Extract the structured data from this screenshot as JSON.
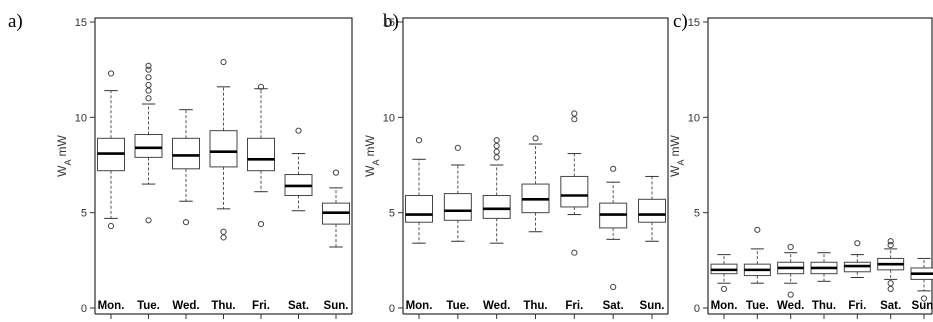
{
  "chart_data": [
    {
      "type": "boxplot",
      "panel_label": "a)",
      "ylabel": "W",
      "ylabel_sub": "A",
      "ylabel_unit": "mW",
      "ylim": [
        0,
        15
      ],
      "yticks": [
        0,
        5,
        10,
        15
      ],
      "categories": [
        "Mon.",
        "Tue.",
        "Wed.",
        "Thu.",
        "Fri.",
        "Sat.",
        "Sun."
      ],
      "boxes": [
        {
          "whisker_low": 4.7,
          "q1": 7.2,
          "median": 8.1,
          "q3": 8.9,
          "whisker_high": 11.4,
          "outliers": [
            4.3,
            12.3
          ]
        },
        {
          "whisker_low": 6.5,
          "q1": 7.9,
          "median": 8.4,
          "q3": 9.1,
          "whisker_high": 10.7,
          "outliers": [
            4.6,
            11.0,
            11.4,
            11.7,
            12.1,
            12.5,
            12.7
          ]
        },
        {
          "whisker_low": 5.6,
          "q1": 7.3,
          "median": 8.0,
          "q3": 8.9,
          "whisker_high": 10.4,
          "outliers": [
            4.5
          ]
        },
        {
          "whisker_low": 5.2,
          "q1": 7.4,
          "median": 8.2,
          "q3": 9.3,
          "whisker_high": 11.6,
          "outliers": [
            3.7,
            4.0,
            12.9
          ]
        },
        {
          "whisker_low": 6.1,
          "q1": 7.2,
          "median": 7.8,
          "q3": 8.9,
          "whisker_high": 11.5,
          "outliers": [
            4.4,
            11.6
          ]
        },
        {
          "whisker_low": 5.1,
          "q1": 5.9,
          "median": 6.4,
          "q3": 7.0,
          "whisker_high": 8.1,
          "outliers": [
            9.3
          ]
        },
        {
          "whisker_low": 3.2,
          "q1": 4.4,
          "median": 5.0,
          "q3": 5.5,
          "whisker_high": 6.3,
          "outliers": [
            7.1
          ]
        }
      ]
    },
    {
      "type": "boxplot",
      "panel_label": "b)",
      "ylabel": "W",
      "ylabel_sub": "A",
      "ylabel_unit": "mW",
      "ylim": [
        0,
        15
      ],
      "yticks": [
        0,
        5,
        10,
        15
      ],
      "categories": [
        "Mon.",
        "Tue.",
        "Wed.",
        "Thu.",
        "Fri.",
        "Sat.",
        "Sun."
      ],
      "boxes": [
        {
          "whisker_low": 3.4,
          "q1": 4.5,
          "median": 4.9,
          "q3": 5.9,
          "whisker_high": 7.8,
          "outliers": [
            8.8
          ]
        },
        {
          "whisker_low": 3.5,
          "q1": 4.6,
          "median": 5.1,
          "q3": 6.0,
          "whisker_high": 7.5,
          "outliers": [
            8.4
          ]
        },
        {
          "whisker_low": 3.4,
          "q1": 4.7,
          "median": 5.2,
          "q3": 5.9,
          "whisker_high": 7.5,
          "outliers": [
            7.9,
            8.2,
            8.5,
            8.8
          ]
        },
        {
          "whisker_low": 4.0,
          "q1": 5.0,
          "median": 5.7,
          "q3": 6.5,
          "whisker_high": 8.6,
          "outliers": [
            8.9
          ]
        },
        {
          "whisker_low": 4.9,
          "q1": 5.3,
          "median": 5.9,
          "q3": 6.9,
          "whisker_high": 8.1,
          "outliers": [
            2.9,
            9.9,
            10.2
          ]
        },
        {
          "whisker_low": 3.6,
          "q1": 4.2,
          "median": 4.9,
          "q3": 5.5,
          "whisker_high": 6.6,
          "outliers": [
            1.1,
            7.3
          ]
        },
        {
          "whisker_low": 3.5,
          "q1": 4.5,
          "median": 4.9,
          "q3": 5.7,
          "whisker_high": 6.9,
          "outliers": []
        }
      ]
    },
    {
      "type": "boxplot",
      "panel_label": "c)",
      "ylabel": "W",
      "ylabel_sub": "A",
      "ylabel_unit": "mW",
      "ylim": [
        0,
        15
      ],
      "yticks": [
        0,
        5,
        10,
        15
      ],
      "categories": [
        "Mon.",
        "Tue.",
        "Wed.",
        "Thu.",
        "Fri.",
        "Sat.",
        "Sun."
      ],
      "boxes": [
        {
          "whisker_low": 1.3,
          "q1": 1.8,
          "median": 2.0,
          "q3": 2.3,
          "whisker_high": 2.8,
          "outliers": [
            1.0
          ]
        },
        {
          "whisker_low": 1.3,
          "q1": 1.7,
          "median": 2.0,
          "q3": 2.3,
          "whisker_high": 3.1,
          "outliers": [
            4.1
          ]
        },
        {
          "whisker_low": 1.3,
          "q1": 1.8,
          "median": 2.1,
          "q3": 2.4,
          "whisker_high": 2.9,
          "outliers": [
            0.7,
            3.2
          ]
        },
        {
          "whisker_low": 1.4,
          "q1": 1.8,
          "median": 2.1,
          "q3": 2.4,
          "whisker_high": 2.9,
          "outliers": []
        },
        {
          "whisker_low": 1.6,
          "q1": 1.9,
          "median": 2.2,
          "q3": 2.4,
          "whisker_high": 2.8,
          "outliers": [
            3.4
          ]
        },
        {
          "whisker_low": 1.5,
          "q1": 2.0,
          "median": 2.3,
          "q3": 2.6,
          "whisker_high": 3.1,
          "outliers": [
            1.0,
            1.3,
            3.3,
            3.5
          ]
        },
        {
          "whisker_low": 0.9,
          "q1": 1.5,
          "median": 1.8,
          "q3": 2.1,
          "whisker_high": 2.6,
          "outliers": [
            0.5
          ]
        }
      ]
    }
  ]
}
